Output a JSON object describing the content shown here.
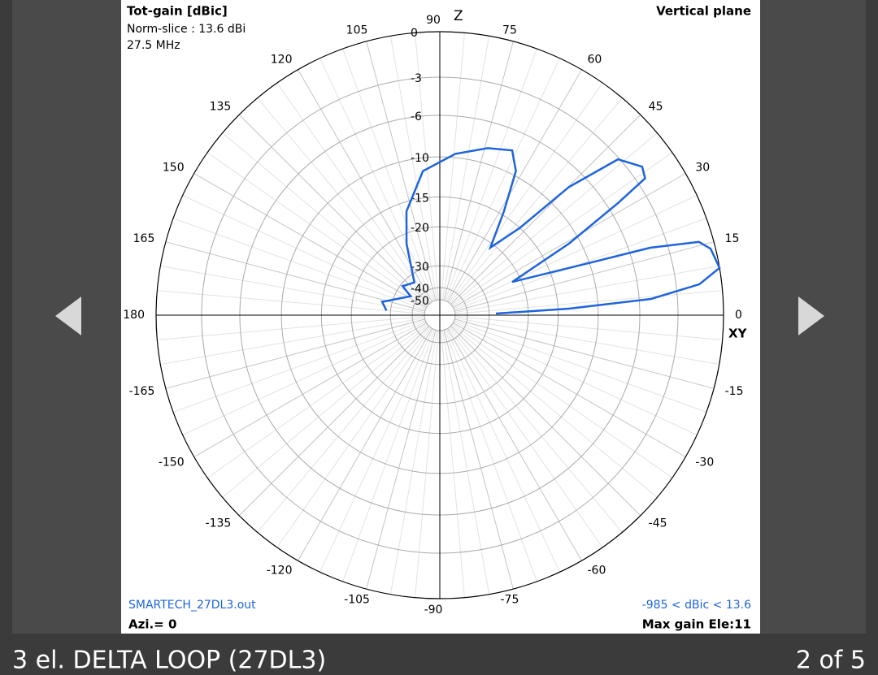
{
  "lightbox": {
    "caption": "3 el. DELTA LOOP (27DL3)",
    "counter": "2 of 5"
  },
  "chart_data": {
    "type": "polar",
    "title": "Tot-gain [dBic]",
    "subtitle": [
      "Norm-slice : 13.6 dBi",
      "27.5 MHz"
    ],
    "plane": "Vertical plane",
    "file": "SMARTECH_27DL3.out",
    "azimuth": "Azi.= 0",
    "range": "-985 < dBic < 13.6",
    "max_gain": "Max gain Ele:11",
    "z_label": "Z",
    "xy_label": "XY",
    "rticks": [
      0,
      -3,
      -6,
      -10,
      -15,
      -20,
      -30,
      -40,
      -50
    ],
    "angle_ticks": [
      0,
      15,
      30,
      45,
      60,
      75,
      90,
      105,
      120,
      135,
      150,
      165,
      180,
      -165,
      -150,
      -135,
      -120,
      -105,
      -90,
      -75,
      -60,
      -45,
      -30,
      -15
    ],
    "series": [
      {
        "color": "#1e64dc",
        "x": [
          1.7,
          2.9,
          4.4,
          6.8,
          9.6,
          13.8,
          15.8,
          17.8,
          19.4,
          24.7,
          29,
          32.2,
          33.7,
          36.3,
          41.2,
          44.8,
          47.5,
          53.2,
          58.3,
          62.2,
          66.3,
          74,
          84.5,
          96.7,
          107.8,
          115,
          127.8,
          142,
          147,
          167,
          175
        ],
        "values": [
          -27.8,
          -13.5,
          -5.0,
          -1.4,
          0,
          -0.3,
          -0.9,
          -4.3,
          -10.4,
          -21.8,
          -11.2,
          -5.1,
          -2.4,
          -2.1,
          -3.1,
          -7.6,
          -15.0,
          -20.8,
          -14.5,
          -9.5,
          -7.8,
          -8.4,
          -9.6,
          -11.5,
          -16.4,
          -22.0,
          -33.0,
          -30.8,
          -36.0,
          -26.9,
          -28.6
        ]
      }
    ]
  }
}
